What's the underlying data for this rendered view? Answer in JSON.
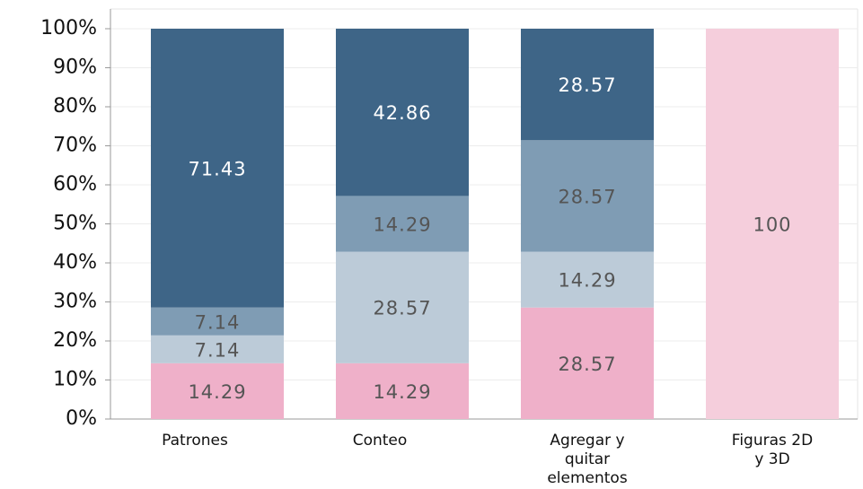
{
  "chart_data": {
    "type": "stacked_bar",
    "categories": [
      "Patrones",
      "Conteo",
      "Agregar y quitar elementos",
      "Figuras 2D y 3D"
    ],
    "series": [
      {
        "color": "#efb0c9",
        "values": [
          14.29,
          14.29,
          28.57,
          null
        ]
      },
      {
        "color": "#bccbd8",
        "values": [
          7.14,
          28.57,
          14.29,
          null
        ]
      },
      {
        "color": "#7f9cb4",
        "values": [
          7.14,
          14.29,
          28.57,
          null
        ]
      },
      {
        "color": "#3e6587",
        "values": [
          71.43,
          42.86,
          28.57,
          null
        ]
      },
      {
        "color": "#f5cedc",
        "values": [
          null,
          null,
          null,
          100
        ]
      }
    ],
    "ylim": [
      0,
      100
    ],
    "yticks": [
      {
        "value": 0,
        "label": "0%"
      },
      {
        "value": 10,
        "label": "10%"
      },
      {
        "value": 20,
        "label": "20%"
      },
      {
        "value": 30,
        "label": "30%"
      },
      {
        "value": 40,
        "label": "40%"
      },
      {
        "value": 50,
        "label": "50%"
      },
      {
        "value": 60,
        "label": "60%"
      },
      {
        "value": 70,
        "label": "70%"
      },
      {
        "value": 80,
        "label": "80%"
      },
      {
        "value": 90,
        "label": "90%"
      },
      {
        "value": 100,
        "label": "100%"
      }
    ],
    "grid": true
  }
}
